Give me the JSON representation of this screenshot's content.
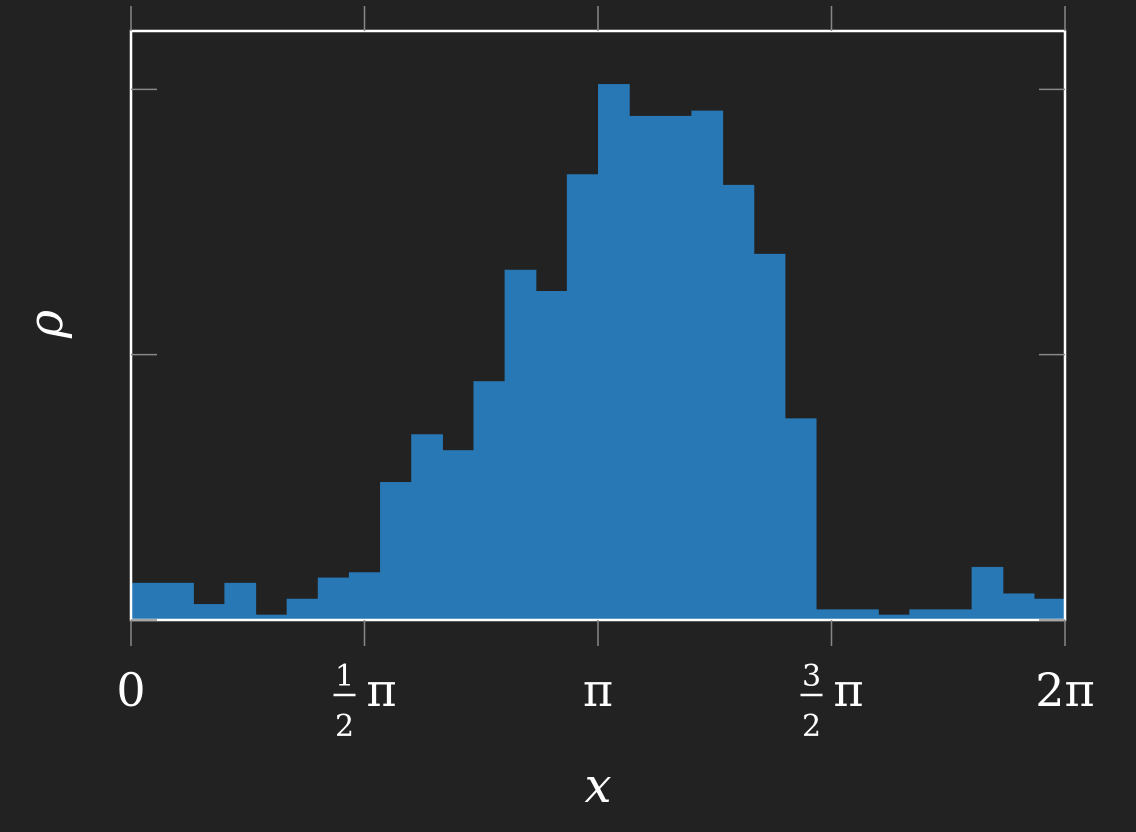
{
  "colors": {
    "background": "#222222",
    "bar": "#2878b5",
    "frame": "#ffffff",
    "tick": "#888888"
  },
  "chart_data": {
    "type": "bar",
    "title": "",
    "xlabel": "x",
    "ylabel": "ρ",
    "x_range": [
      0,
      6.283185
    ],
    "y_range": [
      0,
      1.11
    ],
    "grid": false,
    "legend": "none",
    "y_ticks": [
      0,
      0.5,
      1.0
    ],
    "x_ticks": [
      {
        "value": 0,
        "label": "0"
      },
      {
        "value": 1.570796,
        "label": "½π",
        "numerator": "1",
        "denominator": "2",
        "symbol": "π"
      },
      {
        "value": 3.141593,
        "label": "π"
      },
      {
        "value": 4.712389,
        "label": "³⁄₂π",
        "numerator": "3",
        "denominator": "2",
        "symbol": "π"
      },
      {
        "value": 6.283185,
        "label": "2π"
      }
    ],
    "bin_width": 0.20944,
    "bin_starts": [
      0.0,
      0.20944,
      0.41888,
      0.62832,
      0.83776,
      1.0472,
      1.25664,
      1.46608,
      1.67552,
      1.88496,
      2.0944,
      2.30383,
      2.51327,
      2.72271,
      2.93215,
      3.14159,
      3.35103,
      3.56047,
      3.76991,
      3.97935,
      4.18879,
      4.39823,
      4.60767,
      4.81711,
      5.02655,
      5.23599,
      5.44543,
      5.65487,
      5.86431,
      6.07375
    ],
    "values": [
      0.07,
      0.07,
      0.03,
      0.07,
      0.01,
      0.04,
      0.08,
      0.09,
      0.26,
      0.35,
      0.32,
      0.45,
      0.66,
      0.62,
      0.84,
      1.01,
      0.95,
      0.95,
      0.96,
      0.82,
      0.69,
      0.38,
      0.02,
      0.02,
      0.01,
      0.02,
      0.02,
      0.1,
      0.05,
      0.04
    ]
  }
}
